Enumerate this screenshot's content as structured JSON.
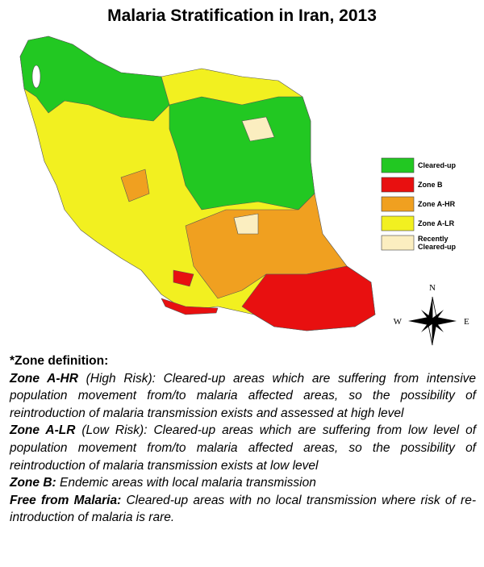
{
  "title": "Malaria Stratification in Iran, 2013",
  "legend": [
    {
      "label": "Cleared-up",
      "color": "#22c822"
    },
    {
      "label": "Zone B",
      "color": "#e81010"
    },
    {
      "label": "Zone A-HR",
      "color": "#f0a020"
    },
    {
      "label": "Zone A-LR",
      "color": "#f2f020"
    },
    {
      "label": "Recently Cleared-up",
      "color": "#fbeec0"
    }
  ],
  "compass": {
    "n": "N",
    "w": "W",
    "e": "E"
  },
  "definitions": {
    "heading": "*Zone definition:",
    "items": [
      {
        "term": "Zone A-HR",
        "text": " (High Risk):  Cleared-up areas which are suffering from intensive population movement from/to malaria affected areas, so the possibility of reintroduction  of malaria transmission exists and assessed at high level"
      },
      {
        "term": "Zone A-LR",
        "text": " (Low Risk): Cleared-up areas which are suffering from low level of population movement from/to malaria affected areas, so the possibility of reintroduction  of malaria transmission exists at low level"
      },
      {
        "term": "Zone B:",
        "text": " Endemic areas with local malaria transmission"
      },
      {
        "term": "Free from Malaria:",
        "text": " Cleared-up areas with no local transmission where risk of re-introduction  of malaria is rare."
      }
    ]
  }
}
